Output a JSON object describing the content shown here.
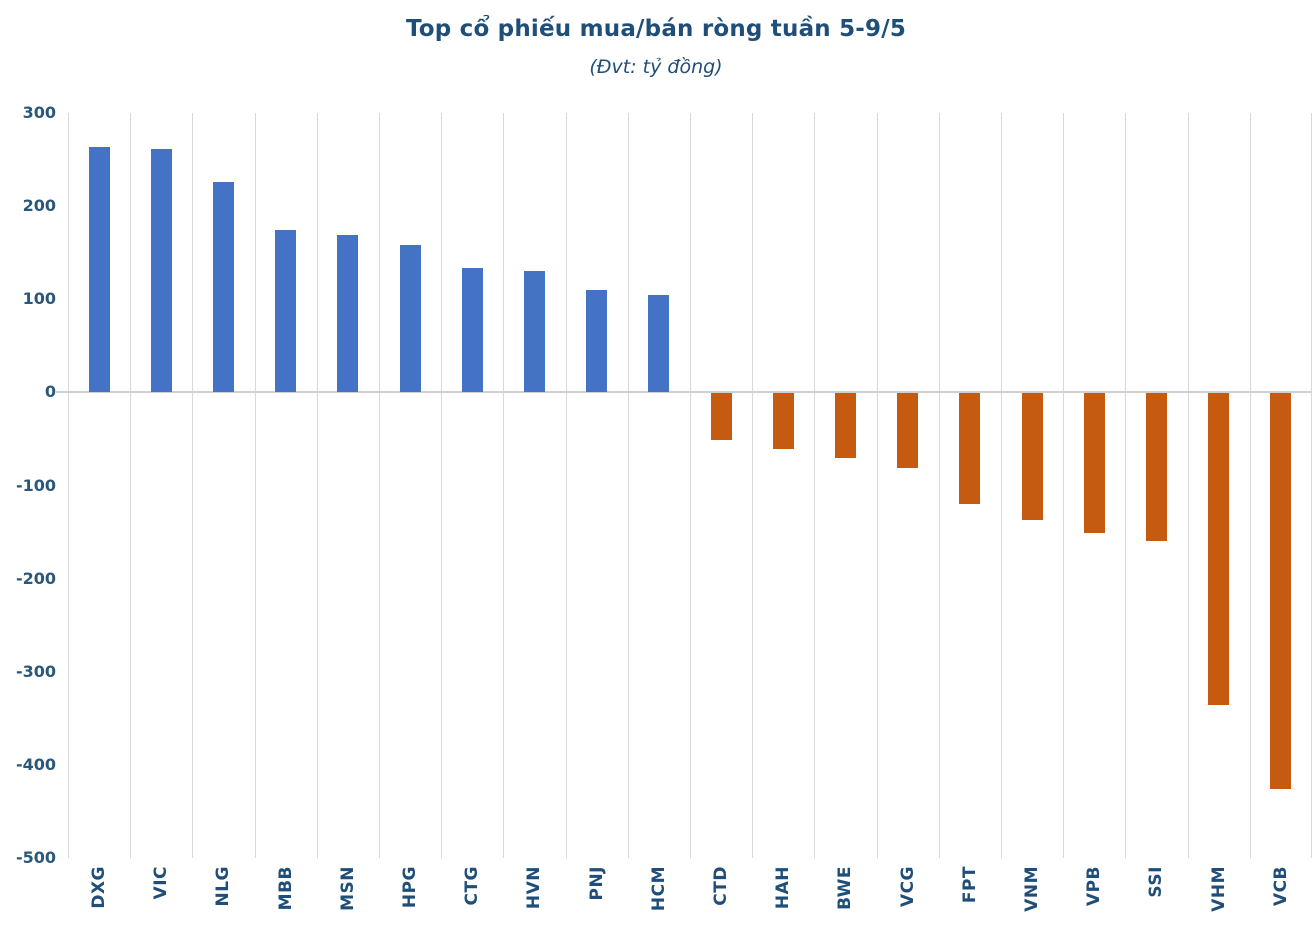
{
  "title": "Top cổ phiếu mua/bán ròng tuần 5-9/5",
  "subtitle": "(Đvt: tỷ đồng)",
  "colors": {
    "positive_bar": "#4472C4",
    "negative_bar": "#C55A11",
    "title_text": "#1F4E79",
    "axis_label_text": "#2A587C",
    "gridline": "#D9D9D9",
    "axis_line": "#D0D0D0",
    "background": "#FFFFFF"
  },
  "chart_data": {
    "type": "bar",
    "title": "Top cổ phiếu mua/bán ròng tuần 5-9/5",
    "subtitle": "(Đvt: tỷ đồng)",
    "unit": "tỷ đồng",
    "categories": [
      "DXG",
      "VIC",
      "NLG",
      "MBB",
      "MSN",
      "HPG",
      "CTG",
      "HVN",
      "PNJ",
      "HCM",
      "CTD",
      "HAH",
      "BWE",
      "VCG",
      "FPT",
      "VNM",
      "VPB",
      "SSI",
      "VHM",
      "VCB"
    ],
    "values": [
      264,
      261,
      226,
      174,
      169,
      158,
      134,
      130,
      110,
      105,
      -50,
      -60,
      -69,
      -80,
      -119,
      -136,
      -150,
      -158,
      -335,
      -425
    ],
    "xlabel": "",
    "ylabel": "",
    "ylim": [
      -500,
      300
    ],
    "yticks": [
      300,
      200,
      100,
      0,
      -100,
      -200,
      -300,
      -400,
      -500
    ],
    "grid": "vertical-category-gridlines-only",
    "legend": "none",
    "positive_color": "#4472C4",
    "negative_color": "#C55A11"
  }
}
